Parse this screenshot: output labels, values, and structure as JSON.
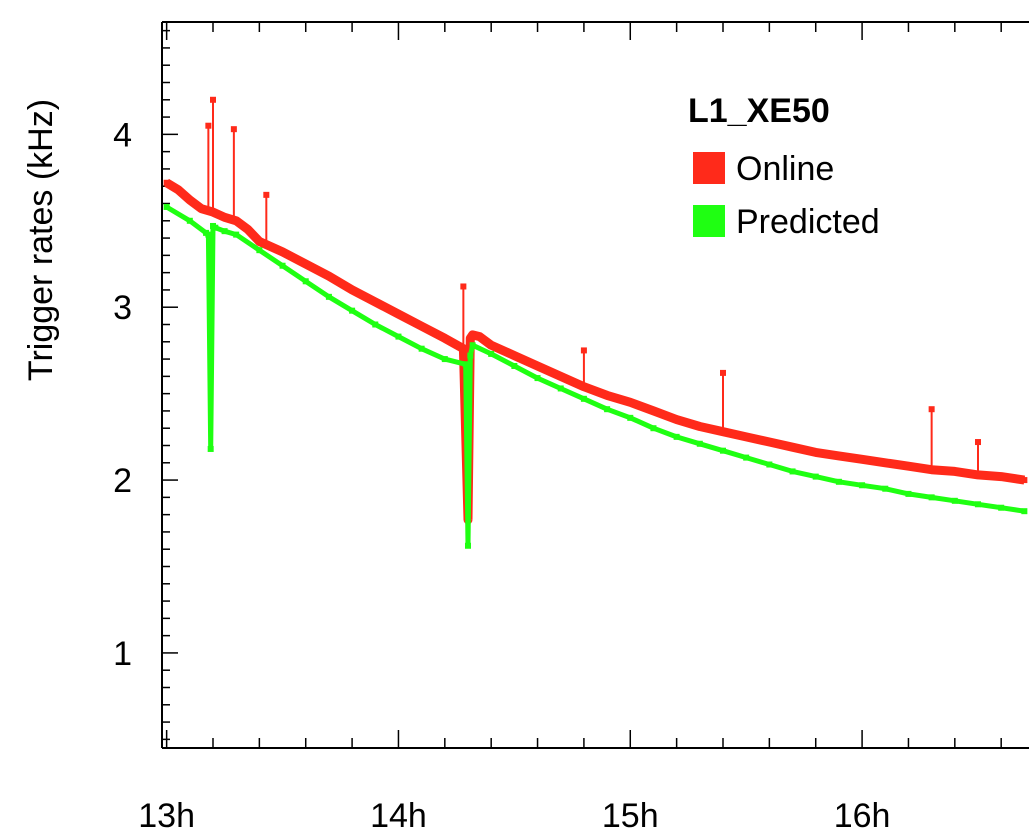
{
  "chart_data": {
    "type": "line",
    "ylabel": "Trigger rates (kHz)",
    "xlabel": "",
    "xlim": [
      12.98,
      16.72
    ],
    "ylim": [
      0.45,
      4.65
    ],
    "x_ticks": [
      13,
      14,
      15,
      16
    ],
    "x_tick_labels": [
      "13h",
      "14h",
      "15h",
      "16h"
    ],
    "y_ticks": [
      1,
      2,
      3,
      4
    ],
    "y_tick_labels": [
      "1",
      "2",
      "3",
      "4"
    ],
    "grid": false,
    "legend": {
      "title": "L1_XE50",
      "placement": "top-right",
      "entries": [
        "Online",
        "Predicted"
      ]
    },
    "series": [
      {
        "name": "Online",
        "color": "#ff2a1a",
        "x": [
          13.0,
          13.05,
          13.1,
          13.15,
          13.2,
          13.25,
          13.3,
          13.35,
          13.4,
          13.5,
          13.6,
          13.7,
          13.8,
          13.9,
          14.0,
          14.1,
          14.2,
          14.28,
          14.3,
          14.31,
          14.32,
          14.35,
          14.4,
          14.5,
          14.6,
          14.7,
          14.8,
          14.9,
          15.0,
          15.1,
          15.2,
          15.3,
          15.4,
          15.5,
          15.6,
          15.7,
          15.8,
          15.9,
          16.0,
          16.1,
          16.2,
          16.3,
          16.4,
          16.5,
          16.6,
          16.7
        ],
        "y": [
          3.72,
          3.68,
          3.62,
          3.57,
          3.55,
          3.52,
          3.5,
          3.45,
          3.38,
          3.32,
          3.25,
          3.18,
          3.1,
          3.03,
          2.96,
          2.89,
          2.82,
          2.76,
          1.77,
          2.82,
          2.84,
          2.83,
          2.78,
          2.72,
          2.66,
          2.6,
          2.54,
          2.49,
          2.45,
          2.4,
          2.35,
          2.31,
          2.28,
          2.25,
          2.22,
          2.19,
          2.16,
          2.14,
          2.12,
          2.1,
          2.08,
          2.06,
          2.05,
          2.03,
          2.02,
          2.0
        ],
        "spikes": [
          [
            13.18,
            4.05
          ],
          [
            13.2,
            4.2
          ],
          [
            13.29,
            4.03
          ],
          [
            13.43,
            3.65
          ],
          [
            14.28,
            3.12
          ],
          [
            14.8,
            2.75
          ],
          [
            15.4,
            2.62
          ],
          [
            16.3,
            2.41
          ],
          [
            16.5,
            2.22
          ]
        ]
      },
      {
        "name": "Predicted",
        "color": "#1fff12",
        "x": [
          13.0,
          13.1,
          13.17,
          13.18,
          13.19,
          13.2,
          13.21,
          13.25,
          13.3,
          13.4,
          13.5,
          13.6,
          13.7,
          13.8,
          13.9,
          14.0,
          14.1,
          14.2,
          14.29,
          14.3,
          14.31,
          14.32,
          14.4,
          14.5,
          14.6,
          14.7,
          14.8,
          14.9,
          15.0,
          15.1,
          15.2,
          15.3,
          15.4,
          15.5,
          15.6,
          15.7,
          15.8,
          15.9,
          16.0,
          16.1,
          16.2,
          16.3,
          16.4,
          16.5,
          16.6,
          16.7
        ],
        "y": [
          3.58,
          3.5,
          3.43,
          3.42,
          2.18,
          3.47,
          3.46,
          3.44,
          3.42,
          3.33,
          3.24,
          3.15,
          3.06,
          2.98,
          2.9,
          2.83,
          2.76,
          2.7,
          2.67,
          1.62,
          2.72,
          2.78,
          2.73,
          2.66,
          2.59,
          2.53,
          2.47,
          2.41,
          2.36,
          2.3,
          2.25,
          2.21,
          2.17,
          2.13,
          2.09,
          2.05,
          2.02,
          1.99,
          1.97,
          1.95,
          1.92,
          1.9,
          1.88,
          1.86,
          1.84,
          1.82
        ]
      }
    ]
  }
}
